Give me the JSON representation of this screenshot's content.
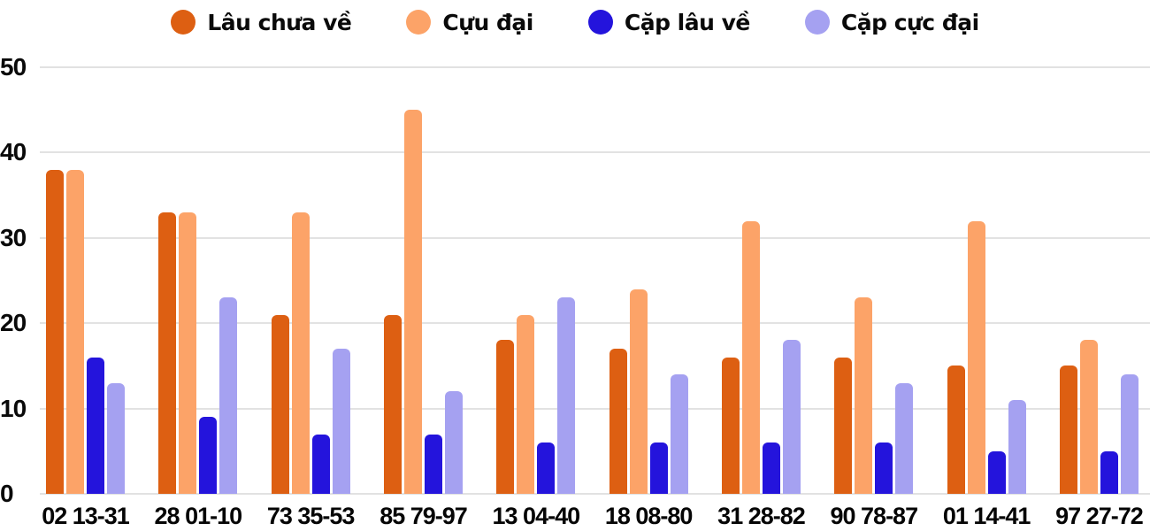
{
  "colors": {
    "series1": "#dd5f12",
    "series2": "#fca368",
    "series3": "#2414dc",
    "series4": "#a5a1f1",
    "gridline": "#e2e2e2",
    "text": "#0a0a0a"
  },
  "legend": {
    "items": [
      {
        "label": "Lâu chưa về",
        "color": "#dd5f12"
      },
      {
        "label": "Cựu đại",
        "color": "#fca368"
      },
      {
        "label": "Cặp lâu về",
        "color": "#2414dc"
      },
      {
        "label": "Cặp cực đại",
        "color": "#a5a1f1"
      }
    ]
  },
  "chart_data": {
    "type": "bar",
    "title": "",
    "xlabel": "",
    "ylabel": "",
    "categories": [
      "02 13-31",
      "28 01-10",
      "73 35-53",
      "85 79-97",
      "13 04-40",
      "18 08-80",
      "31 28-82",
      "90 78-87",
      "01 14-41",
      "97 27-72"
    ],
    "series": [
      {
        "name": "Lâu chưa về",
        "color": "#dd5f12",
        "values": [
          38,
          33,
          21,
          21,
          18,
          17,
          16,
          16,
          15,
          15
        ]
      },
      {
        "name": "Cựu đại",
        "color": "#fca368",
        "values": [
          38,
          33,
          33,
          45,
          21,
          24,
          32,
          23,
          32,
          18
        ]
      },
      {
        "name": "Cặp lâu về",
        "color": "#2414dc",
        "values": [
          16,
          9,
          7,
          7,
          6,
          6,
          6,
          6,
          5,
          5
        ]
      },
      {
        "name": "Cặp cực đại",
        "color": "#a5a1f1",
        "values": [
          13,
          23,
          17,
          12,
          23,
          14,
          18,
          13,
          11,
          14
        ]
      }
    ],
    "ylim": [
      0,
      50
    ],
    "yticks": [
      0,
      10,
      20,
      30,
      40,
      50
    ],
    "grid": true,
    "legend_position": "top"
  }
}
